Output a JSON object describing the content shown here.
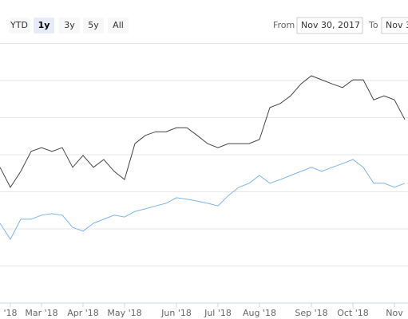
{
  "range_buttons": [
    "YTD",
    "1y",
    "3y",
    "5y",
    "All"
  ],
  "selected_button": 1,
  "from_label": "From",
  "from_value": "Nov 30, 2017",
  "to_label": "To",
  "to_value": "Nov 3",
  "chart_data": {
    "type": "line",
    "categories": [
      null,
      "'18",
      null,
      null,
      "Mar '18",
      null,
      null,
      null,
      "Apr '18",
      null,
      null,
      null,
      "May '18",
      null,
      null,
      null,
      null,
      "Jun '18",
      null,
      null,
      null,
      "Jul '18",
      null,
      null,
      null,
      "Aug '18",
      null,
      null,
      null,
      null,
      "Sep '18",
      null,
      null,
      null,
      "Oct '18",
      null,
      null,
      null,
      "Nov",
      null
    ],
    "ylim": [
      0,
      7
    ],
    "series": [
      {
        "color": "#434348",
        "values": [
          3.66,
          3.12,
          3.55,
          4.09,
          4.19,
          4.09,
          4.19,
          3.66,
          3.98,
          3.66,
          3.87,
          3.55,
          3.33,
          4.3,
          4.52,
          4.62,
          4.62,
          4.73,
          4.73,
          4.52,
          4.3,
          4.19,
          4.3,
          4.3,
          4.3,
          4.41,
          5.27,
          5.38,
          5.59,
          5.91,
          6.13,
          6.02,
          5.91,
          5.81,
          6.02,
          6.02,
          5.48,
          5.59,
          5.48,
          4.95
        ]
      },
      {
        "color": "#7cb5ec",
        "values": [
          2.15,
          1.72,
          2.26,
          2.26,
          2.37,
          2.41,
          2.37,
          2.04,
          1.94,
          2.15,
          2.26,
          2.37,
          2.32,
          2.47,
          2.54,
          2.62,
          2.69,
          2.84,
          2.8,
          2.75,
          2.69,
          2.62,
          2.9,
          3.12,
          3.23,
          3.44,
          3.23,
          3.33,
          3.44,
          3.55,
          3.66,
          3.55,
          3.66,
          3.76,
          3.87,
          3.66,
          3.23,
          3.23,
          3.12,
          3.23
        ]
      }
    ]
  }
}
